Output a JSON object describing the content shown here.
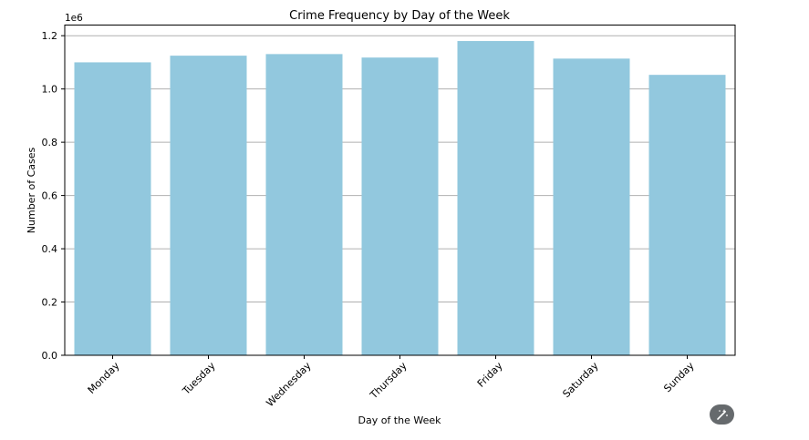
{
  "chart_data": {
    "type": "bar",
    "title": "Crime Frequency by Day of the Week",
    "xlabel": "Day of the Week",
    "ylabel": "Number of Cases",
    "scale_label": "1e6",
    "categories": [
      "Monday",
      "Tuesday",
      "Wednesday",
      "Thursday",
      "Friday",
      "Saturday",
      "Sunday"
    ],
    "values": [
      1100000,
      1125000,
      1131000,
      1118000,
      1180000,
      1114000,
      1053000
    ],
    "ylim": [
      0,
      1240000
    ],
    "yticks": [
      0,
      200000,
      400000,
      600000,
      800000,
      1000000,
      1200000
    ],
    "ytick_labels": [
      "0.0",
      "0.2",
      "0.4",
      "0.6",
      "0.8",
      "1.0",
      "1.2"
    ],
    "grid": "horizontal",
    "bar_color": "#92c8de"
  },
  "toolbar": {
    "magic_icon": "magic-wand-icon"
  }
}
